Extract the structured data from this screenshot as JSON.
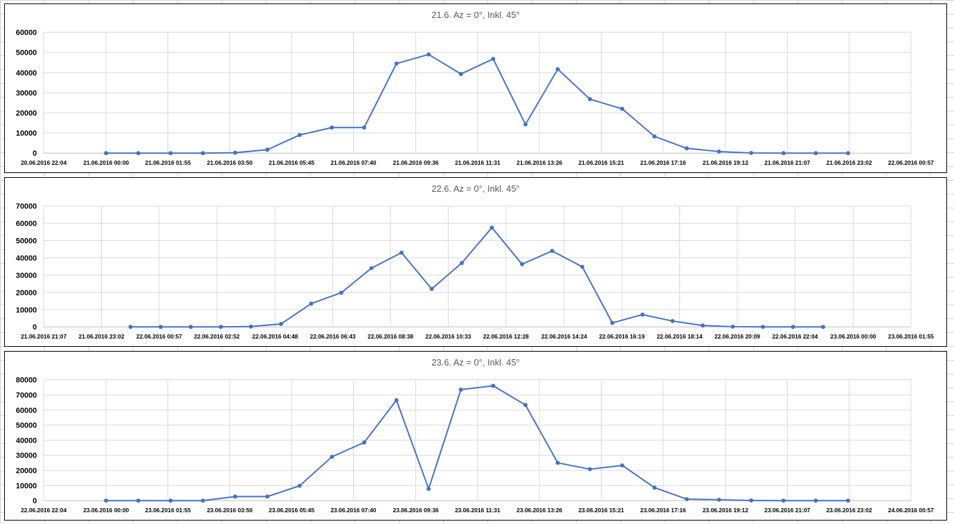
{
  "chart_data": [
    {
      "type": "line",
      "title": "21.6. Az = 0°, Inkl. 45°",
      "ylim": [
        0,
        60000
      ],
      "yticks": [
        "0",
        "10000",
        "20000",
        "30000",
        "40000",
        "50000",
        "60000"
      ],
      "xticks": [
        "20.06.2016 22:04",
        "21.06.2016 00:00",
        "21.06.2016 01:55",
        "21.06.2016 03:50",
        "21.06.2016 05:45",
        "21.06.2016 07:40",
        "21.06.2016 09:36",
        "21.06.2016 11:31",
        "21.06.2016 13:26",
        "21.06.2016 15:21",
        "21.06.2016 17:16",
        "21.06.2016 19:12",
        "21.06.2016 21:07",
        "21.06.2016 23:02",
        "22.06.2016 00:57"
      ],
      "x": [
        "21.06.2016 00:00",
        "21.06.2016 01:00",
        "21.06.2016 02:00",
        "21.06.2016 03:00",
        "21.06.2016 04:00",
        "21.06.2016 05:00",
        "21.06.2016 06:00",
        "21.06.2016 07:00",
        "21.06.2016 08:00",
        "21.06.2016 09:00",
        "21.06.2016 10:00",
        "21.06.2016 11:00",
        "21.06.2016 12:00",
        "21.06.2016 13:00",
        "21.06.2016 14:00",
        "21.06.2016 15:00",
        "21.06.2016 16:00",
        "21.06.2016 17:00",
        "21.06.2016 18:00",
        "21.06.2016 19:00",
        "21.06.2016 20:00",
        "21.06.2016 21:00",
        "21.06.2016 22:00",
        "21.06.2016 23:00"
      ],
      "values": [
        0,
        0,
        0,
        0,
        200,
        1700,
        9000,
        12700,
        12700,
        44500,
        49000,
        39300,
        46800,
        14300,
        41700,
        26800,
        22000,
        8300,
        2400,
        800,
        100,
        0,
        0,
        0
      ],
      "grid": true,
      "color": "#4472c4"
    },
    {
      "type": "line",
      "title": "22.6. Az = 0°, Inkl. 45°",
      "ylim": [
        0,
        70000
      ],
      "yticks": [
        "0",
        "10000",
        "20000",
        "30000",
        "40000",
        "50000",
        "60000",
        "70000"
      ],
      "xticks": [
        "21.06.2016 21:07",
        "21.06.2016 23:02",
        "22.06.2016 00:57",
        "22.06.2016 02:52",
        "22.06.2016 04:48",
        "22.06.2016 06:43",
        "22.06.2016 08:38",
        "22.06.2016 10:33",
        "22.06.2016 12:28",
        "22.06.2016 14:24",
        "22.06.2016 16:19",
        "22.06.2016 18:14",
        "22.06.2016 20:09",
        "22.06.2016 22:04",
        "23.06.2016 00:00",
        "23.06.2016 01:55"
      ],
      "x": [
        "22.06.2016 00:00",
        "22.06.2016 01:00",
        "22.06.2016 02:00",
        "22.06.2016 03:00",
        "22.06.2016 04:00",
        "22.06.2016 05:00",
        "22.06.2016 06:00",
        "22.06.2016 07:00",
        "22.06.2016 08:00",
        "22.06.2016 09:00",
        "22.06.2016 10:00",
        "22.06.2016 11:00",
        "22.06.2016 12:00",
        "22.06.2016 13:00",
        "22.06.2016 14:00",
        "22.06.2016 15:00",
        "22.06.2016 16:00",
        "22.06.2016 17:00",
        "22.06.2016 18:00",
        "22.06.2016 19:00",
        "22.06.2016 20:00",
        "22.06.2016 21:00",
        "22.06.2016 22:00",
        "22.06.2016 23:00"
      ],
      "values": [
        0,
        0,
        0,
        0,
        200,
        1700,
        13500,
        19800,
        34000,
        43000,
        22000,
        37000,
        57500,
        36300,
        44000,
        34800,
        2300,
        7100,
        3400,
        800,
        100,
        0,
        0,
        0
      ],
      "grid": true,
      "color": "#4472c4"
    },
    {
      "type": "line",
      "title": "23.6. Az = 0°, Inkl. 45°",
      "ylim": [
        0,
        80000
      ],
      "yticks": [
        "0",
        "10000",
        "20000",
        "30000",
        "40000",
        "50000",
        "60000",
        "70000",
        "80000"
      ],
      "xticks": [
        "22.06.2016 22:04",
        "23.06.2016 00:00",
        "23.06.2016 01:55",
        "23.06.2016 03:50",
        "23.06.2016 05:45",
        "23.06.2016 07:40",
        "23.06.2016 09:36",
        "23.06.2016 11:31",
        "23.06.2016 13:26",
        "23.06.2016 15:21",
        "23.06.2016 17:16",
        "23.06.2016 19:12",
        "23.06.2016 21:07",
        "23.06.2016 23:02",
        "24.06.2016 00:57"
      ],
      "x": [
        "23.06.2016 00:00",
        "23.06.2016 01:00",
        "23.06.2016 02:00",
        "23.06.2016 03:00",
        "23.06.2016 04:00",
        "23.06.2016 05:00",
        "23.06.2016 06:00",
        "23.06.2016 07:00",
        "23.06.2016 08:00",
        "23.06.2016 09:00",
        "23.06.2016 10:00",
        "23.06.2016 11:00",
        "23.06.2016 12:00",
        "23.06.2016 13:00",
        "23.06.2016 14:00",
        "23.06.2016 15:00",
        "23.06.2016 16:00",
        "23.06.2016 17:00",
        "23.06.2016 18:00",
        "23.06.2016 19:00",
        "23.06.2016 20:00",
        "23.06.2016 21:00",
        "23.06.2016 22:00",
        "23.06.2016 23:00"
      ],
      "values": [
        0,
        0,
        0,
        0,
        2700,
        2700,
        9800,
        29000,
        38500,
        66500,
        7800,
        73500,
        76000,
        63300,
        25000,
        20800,
        23300,
        8600,
        1000,
        600,
        100,
        0,
        0,
        0
      ],
      "grid": true,
      "color": "#4472c4"
    }
  ]
}
